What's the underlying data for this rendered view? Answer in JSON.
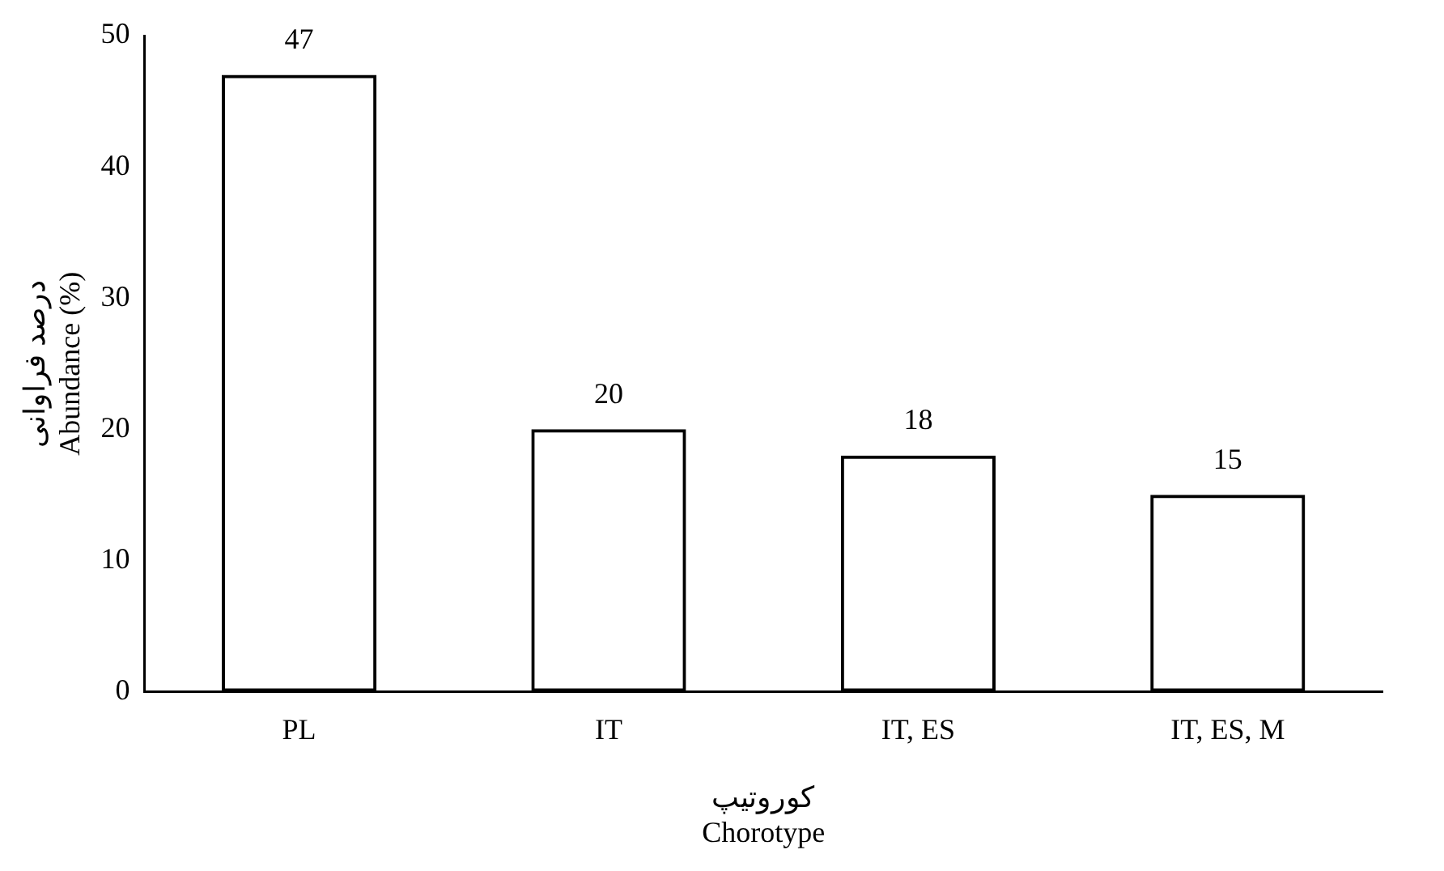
{
  "chart_data": {
    "type": "bar",
    "xlabel": "کوروتیپ\nChorotype",
    "ylabel": "درصد فراوانی\nAbundance (%)",
    "categories": [
      "PL",
      "IT",
      "IT, ES",
      "IT, ES, M"
    ],
    "values": [
      47,
      20,
      18,
      15
    ],
    "color": "#000000",
    "ylim": [
      0,
      50
    ],
    "yticks": [
      0,
      10,
      20,
      30,
      40,
      50
    ],
    "grid": false,
    "legend": false,
    "data_labels": true
  }
}
